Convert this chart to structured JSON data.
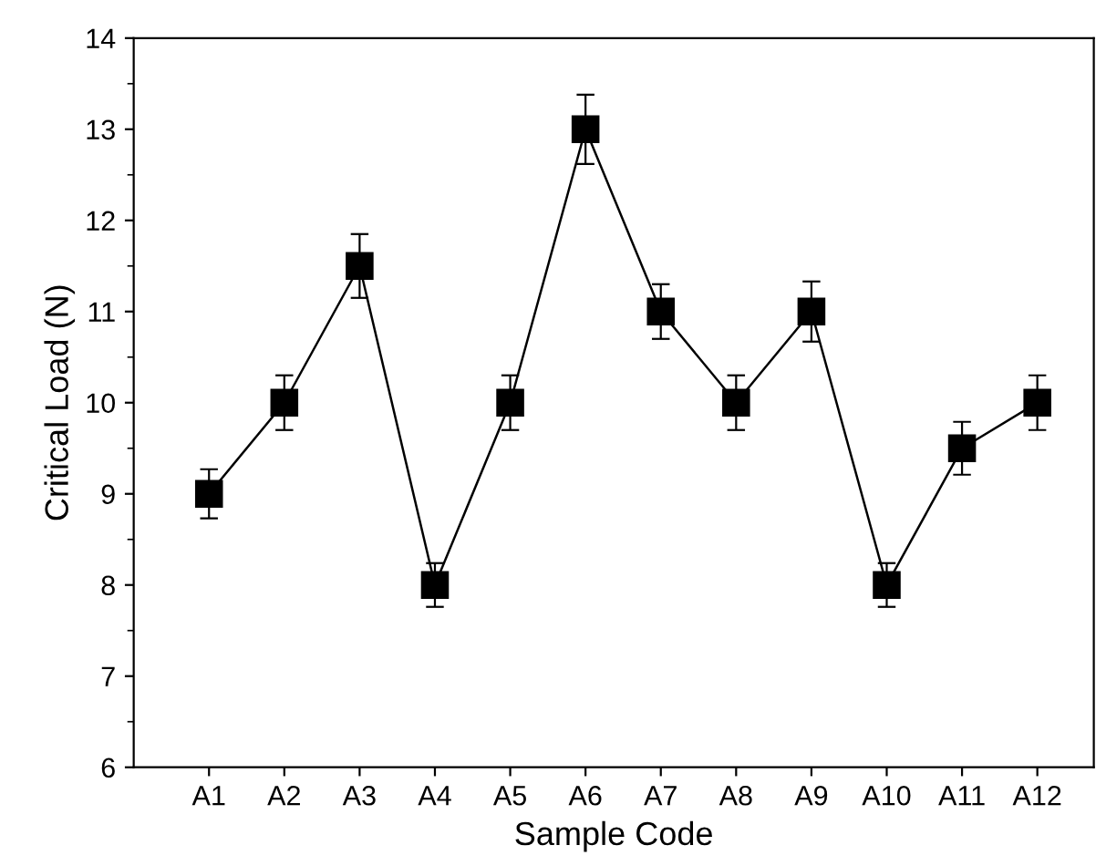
{
  "chart_data": {
    "type": "line",
    "xlabel": "Sample Code",
    "ylabel": "Critical Load (N)",
    "categories": [
      "A1",
      "A2",
      "A3",
      "A4",
      "A5",
      "A6",
      "A7",
      "A8",
      "A9",
      "A10",
      "A11",
      "A12"
    ],
    "series": [
      {
        "color": "#000000",
        "values": [
          9,
          10,
          11.5,
          8,
          10,
          13,
          11,
          10,
          11,
          8,
          9.5,
          10
        ],
        "errors": [
          0.27,
          0.3,
          0.35,
          0.24,
          0.3,
          0.38,
          0.3,
          0.3,
          0.33,
          0.24,
          0.29,
          0.3
        ]
      }
    ],
    "ylim": [
      6,
      14
    ],
    "yticks": [
      6,
      7,
      8,
      9,
      10,
      11,
      12,
      13,
      14
    ],
    "marker": "square",
    "line_style": "solid",
    "grid": false,
    "legend": false
  }
}
